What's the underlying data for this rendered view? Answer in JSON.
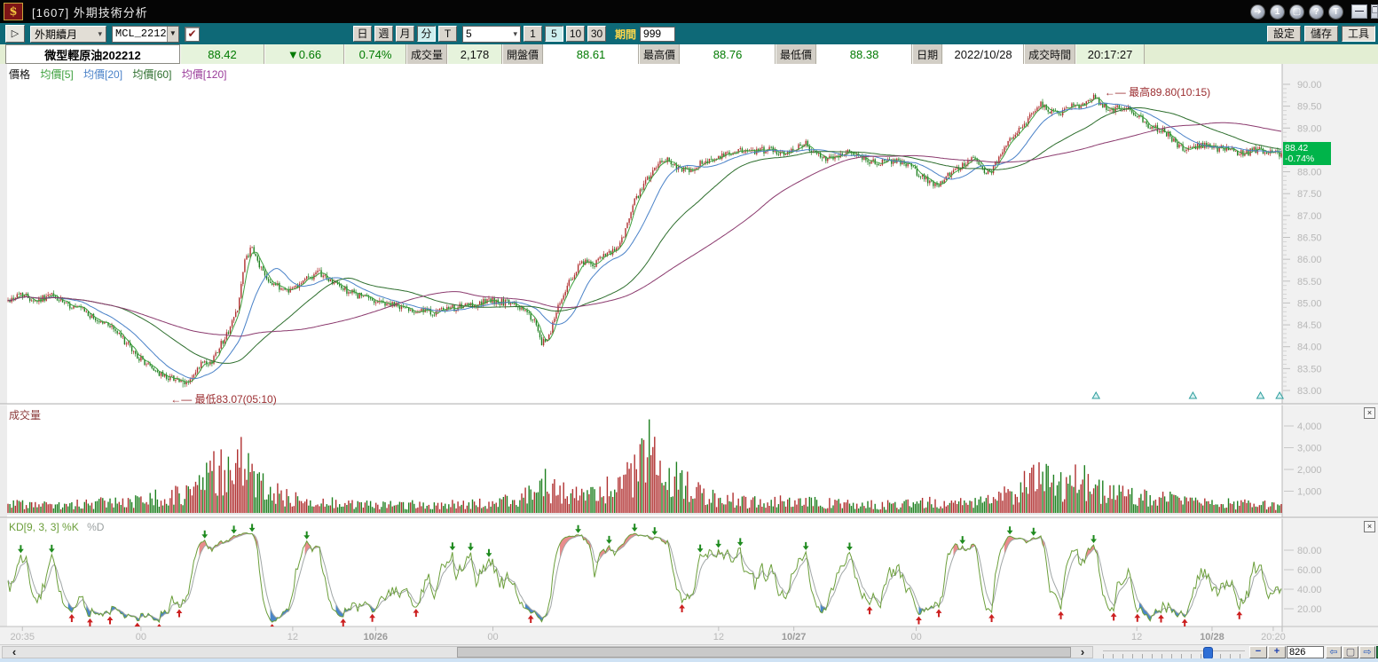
{
  "window": {
    "icon_glyph": "$",
    "title": "[1607] 外期技術分析"
  },
  "titlebar": {
    "round_buttons": [
      {
        "name": "redirect",
        "glyph": "➔"
      },
      {
        "name": "layout-1",
        "glyph": "1"
      },
      {
        "name": "new-window",
        "glyph": "▢"
      },
      {
        "name": "help",
        "glyph": "?"
      },
      {
        "name": "tag",
        "glyph": "T"
      }
    ],
    "minimize_glyph": "—",
    "maximize_glyph": "❐"
  },
  "toolbar": {
    "play_glyph": "▷",
    "contract_selector": "外期續月",
    "symbol_value": "MCL_2212",
    "checkbox_glyph": "✔",
    "period_buttons": [
      "日",
      "週",
      "月",
      "分",
      "T"
    ],
    "period_active": "分",
    "minute_value": "5",
    "minute_buttons": [
      "1",
      "5",
      "10",
      "30"
    ],
    "minute_active": "5",
    "period_label": "期間",
    "period_count": "999",
    "settings_label": "設定",
    "save_label": "儲存",
    "tools_label": "工具",
    "chevron_glyph": "▾"
  },
  "quote": {
    "name": "微型輕原油202212",
    "price": "88.42",
    "change": "▼0.66",
    "change_pct": "0.74%",
    "volume_label": "成交量",
    "volume": "2,178",
    "open_label": "開盤價",
    "open": "88.61",
    "high_label": "最高價",
    "high": "88.76",
    "low_label": "最低價",
    "low": "88.38",
    "date_label": "日期",
    "date": "2022/10/28",
    "time_label": "成交時間",
    "time": "20:17:27"
  },
  "price_pane": {
    "legend": [
      {
        "label": "價格",
        "color": "#101010"
      },
      {
        "label": "均價[5]",
        "color": "#3da03d"
      },
      {
        "label": "均價[20]",
        "color": "#4a82c8"
      },
      {
        "label": "均價[60]",
        "color": "#2d6e2d"
      },
      {
        "label": "均價[120]",
        "color": "#993a99"
      }
    ],
    "arrow_glyph": "←—",
    "high_annotation": "最高89.80(10:15)",
    "low_annotation": "最低83.07(05:10)",
    "price_tag": {
      "price": "88.42",
      "pct": "-0.74%",
      "bg": "#00b44a"
    }
  },
  "volume_pane": {
    "label": "成交量",
    "axis_labels": [
      "4,000",
      "3,000",
      "2,000",
      "1,000"
    ],
    "close_glyph": "×"
  },
  "kd_pane": {
    "label": "KD[9, 3, 3]",
    "k_label": "%K",
    "d_label": "%D",
    "axis_labels": [
      "80.00",
      "60.00",
      "40.00",
      "20.00"
    ],
    "close_glyph": "×"
  },
  "bottom_bar": {
    "scroll_left_glyph": "‹",
    "scroll_right_glyph": "›",
    "minus_glyph": "−",
    "plus_glyph": "+",
    "count_value": "826",
    "nav_left_glyph": "⇦",
    "nav_stop_glyph": "▢",
    "nav_right_glyph": "⇨",
    "excel_glyph": "X"
  },
  "chart_data": {
    "type": "candlestick+volume+stochastic",
    "symbol": "微型輕原油202212",
    "interval": "5分",
    "title": "外期技術分析",
    "y_axis": {
      "min": 83.0,
      "max": 90.0,
      "step": 0.5
    },
    "volume_axis": {
      "max": 4000,
      "step": 1000
    },
    "kd_axis": {
      "min": 0,
      "max": 100,
      "ticks": [
        20,
        40,
        60,
        80
      ]
    },
    "x_labels": [
      {
        "t": 0.012,
        "label": "20:35",
        "bold": false
      },
      {
        "t": 0.105,
        "label": "00",
        "bold": false
      },
      {
        "t": 0.224,
        "label": "12",
        "bold": false
      },
      {
        "t": 0.289,
        "label": "10/26",
        "bold": true
      },
      {
        "t": 0.381,
        "label": "00",
        "bold": false
      },
      {
        "t": 0.558,
        "label": "12",
        "bold": false
      },
      {
        "t": 0.617,
        "label": "10/27",
        "bold": true
      },
      {
        "t": 0.713,
        "label": "00",
        "bold": false
      },
      {
        "t": 0.886,
        "label": "12",
        "bold": false
      },
      {
        "t": 0.945,
        "label": "10/28",
        "bold": true
      },
      {
        "t": 0.993,
        "label": "20:20",
        "bold": false
      }
    ],
    "candle_count": 700,
    "seed": 42,
    "last_price": 88.42,
    "high": {
      "t": 0.853,
      "price": 89.8,
      "time": "10:15"
    },
    "low": {
      "t": 0.138,
      "price": 83.07,
      "time": "05:10"
    },
    "volume_total": 2178,
    "volume_spike": {
      "t": 0.503,
      "value": 4300
    },
    "ma_periods": [
      5,
      20,
      60,
      120
    ],
    "kd_params": [
      9,
      3,
      3
    ],
    "price_anchors": [
      [
        0.0,
        85.05
      ],
      [
        0.01,
        85.22
      ],
      [
        0.022,
        85.05
      ],
      [
        0.034,
        85.18
      ],
      [
        0.046,
        84.95
      ],
      [
        0.058,
        84.85
      ],
      [
        0.068,
        84.62
      ],
      [
        0.08,
        84.5
      ],
      [
        0.09,
        84.18
      ],
      [
        0.1,
        83.82
      ],
      [
        0.11,
        83.58
      ],
      [
        0.122,
        83.32
      ],
      [
        0.132,
        83.28
      ],
      [
        0.138,
        83.12
      ],
      [
        0.146,
        83.32
      ],
      [
        0.152,
        83.62
      ],
      [
        0.158,
        83.55
      ],
      [
        0.166,
        84.02
      ],
      [
        0.172,
        84.28
      ],
      [
        0.18,
        84.85
      ],
      [
        0.186,
        85.95
      ],
      [
        0.191,
        86.25
      ],
      [
        0.197,
        85.88
      ],
      [
        0.204,
        85.55
      ],
      [
        0.213,
        85.35
      ],
      [
        0.222,
        85.3
      ],
      [
        0.233,
        85.55
      ],
      [
        0.245,
        85.68
      ],
      [
        0.256,
        85.45
      ],
      [
        0.268,
        85.25
      ],
      [
        0.285,
        85.08
      ],
      [
        0.302,
        84.95
      ],
      [
        0.318,
        84.85
      ],
      [
        0.334,
        84.78
      ],
      [
        0.35,
        84.88
      ],
      [
        0.365,
        84.95
      ],
      [
        0.378,
        85.05
      ],
      [
        0.392,
        85.0
      ],
      [
        0.404,
        84.88
      ],
      [
        0.413,
        84.6
      ],
      [
        0.419,
        84.05
      ],
      [
        0.425,
        84.25
      ],
      [
        0.431,
        84.85
      ],
      [
        0.438,
        85.32
      ],
      [
        0.445,
        85.7
      ],
      [
        0.452,
        85.95
      ],
      [
        0.459,
        85.85
      ],
      [
        0.466,
        86.02
      ],
      [
        0.473,
        86.12
      ],
      [
        0.479,
        86.28
      ],
      [
        0.485,
        86.65
      ],
      [
        0.491,
        87.25
      ],
      [
        0.497,
        87.58
      ],
      [
        0.504,
        87.92
      ],
      [
        0.511,
        88.15
      ],
      [
        0.518,
        88.3
      ],
      [
        0.525,
        88.1
      ],
      [
        0.533,
        88.0
      ],
      [
        0.541,
        88.15
      ],
      [
        0.549,
        88.26
      ],
      [
        0.558,
        88.32
      ],
      [
        0.567,
        88.42
      ],
      [
        0.577,
        88.5
      ],
      [
        0.587,
        88.45
      ],
      [
        0.597,
        88.52
      ],
      [
        0.607,
        88.42
      ],
      [
        0.617,
        88.55
      ],
      [
        0.626,
        88.65
      ],
      [
        0.634,
        88.4
      ],
      [
        0.642,
        88.3
      ],
      [
        0.651,
        88.36
      ],
      [
        0.659,
        88.5
      ],
      [
        0.667,
        88.4
      ],
      [
        0.676,
        88.26
      ],
      [
        0.686,
        88.2
      ],
      [
        0.696,
        88.26
      ],
      [
        0.705,
        88.2
      ],
      [
        0.713,
        88.0
      ],
      [
        0.721,
        87.82
      ],
      [
        0.729,
        87.66
      ],
      [
        0.736,
        87.86
      ],
      [
        0.743,
        88.02
      ],
      [
        0.751,
        88.2
      ],
      [
        0.758,
        88.3
      ],
      [
        0.764,
        88.1
      ],
      [
        0.771,
        87.96
      ],
      [
        0.778,
        88.32
      ],
      [
        0.785,
        88.62
      ],
      [
        0.792,
        88.92
      ],
      [
        0.799,
        89.12
      ],
      [
        0.806,
        89.45
      ],
      [
        0.813,
        89.55
      ],
      [
        0.819,
        89.35
      ],
      [
        0.826,
        89.3
      ],
      [
        0.833,
        89.52
      ],
      [
        0.841,
        89.45
      ],
      [
        0.849,
        89.68
      ],
      [
        0.853,
        89.74
      ],
      [
        0.858,
        89.55
      ],
      [
        0.865,
        89.42
      ],
      [
        0.872,
        89.46
      ],
      [
        0.88,
        89.5
      ],
      [
        0.888,
        89.26
      ],
      [
        0.896,
        89.06
      ],
      [
        0.904,
        88.95
      ],
      [
        0.912,
        88.85
      ],
      [
        0.918,
        88.62
      ],
      [
        0.925,
        88.52
      ],
      [
        0.932,
        88.56
      ],
      [
        0.94,
        88.6
      ],
      [
        0.948,
        88.52
      ],
      [
        0.956,
        88.56
      ],
      [
        0.964,
        88.46
      ],
      [
        0.972,
        88.42
      ],
      [
        0.98,
        88.5
      ],
      [
        0.988,
        88.46
      ],
      [
        1.0,
        88.42
      ]
    ],
    "volume_anchors": [
      [
        0.0,
        420
      ],
      [
        0.04,
        350
      ],
      [
        0.08,
        520
      ],
      [
        0.12,
        750
      ],
      [
        0.14,
        950
      ],
      [
        0.155,
        1500
      ],
      [
        0.165,
        2100
      ],
      [
        0.175,
        1700
      ],
      [
        0.185,
        2600
      ],
      [
        0.195,
        1500
      ],
      [
        0.21,
        950
      ],
      [
        0.23,
        650
      ],
      [
        0.26,
        450
      ],
      [
        0.3,
        380
      ],
      [
        0.34,
        420
      ],
      [
        0.38,
        460
      ],
      [
        0.405,
        700
      ],
      [
        0.418,
        1500
      ],
      [
        0.43,
        1100
      ],
      [
        0.45,
        800
      ],
      [
        0.465,
        900
      ],
      [
        0.478,
        1400
      ],
      [
        0.488,
        1800
      ],
      [
        0.496,
        2300
      ],
      [
        0.503,
        4300
      ],
      [
        0.509,
        2000
      ],
      [
        0.516,
        1500
      ],
      [
        0.525,
        1800
      ],
      [
        0.535,
        1200
      ],
      [
        0.55,
        820
      ],
      [
        0.57,
        620
      ],
      [
        0.59,
        520
      ],
      [
        0.61,
        560
      ],
      [
        0.63,
        500
      ],
      [
        0.65,
        460
      ],
      [
        0.67,
        410
      ],
      [
        0.69,
        390
      ],
      [
        0.71,
        430
      ],
      [
        0.73,
        520
      ],
      [
        0.75,
        460
      ],
      [
        0.77,
        560
      ],
      [
        0.785,
        900
      ],
      [
        0.8,
        1400
      ],
      [
        0.81,
        1800
      ],
      [
        0.82,
        1300
      ],
      [
        0.83,
        1500
      ],
      [
        0.84,
        1900
      ],
      [
        0.85,
        1400
      ],
      [
        0.86,
        1100
      ],
      [
        0.875,
        900
      ],
      [
        0.89,
        720
      ],
      [
        0.9,
        800
      ],
      [
        0.92,
        620
      ],
      [
        0.94,
        520
      ],
      [
        0.96,
        460
      ],
      [
        0.98,
        410
      ],
      [
        1.0,
        360
      ]
    ],
    "session_carets_t": [
      0.854,
      0.93,
      0.983,
      0.998
    ],
    "colors": {
      "up": "#b03030",
      "down": "#1f8020",
      "ma5": "#3da03d",
      "ma20": "#4a82c8",
      "ma60": "#2d6e2d",
      "ma120": "#8b3a6e",
      "kd_k": "#6b9e3a",
      "kd_d": "#a0a6a6",
      "kd_fill_high": "#e88c8c",
      "kd_fill_low": "#4a86c8",
      "marker_up": "#cc2020",
      "marker_down": "#1e8a1e",
      "axis_text": "#b8b8b8",
      "axis_text_bold": "#9a9a9a",
      "annotation": "#9b2d30",
      "caret": "#2f9e9e",
      "price_tag_bg": "#00b44a"
    }
  }
}
